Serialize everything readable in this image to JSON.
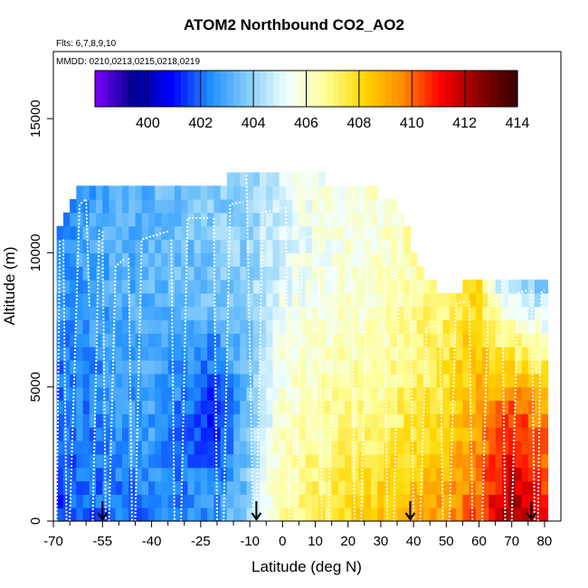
{
  "chart_data": {
    "type": "heatmap",
    "title": "ATOM2 Northbound CO2_AO2",
    "flights_note": "Flts: 6,7,8,9,10",
    "dates_note": "MMDD: 0210,0213,0215,0218,0219",
    "xlabel": "Latitude (deg N)",
    "ylabel": "Altitude (m)",
    "xlim": [
      -70,
      85
    ],
    "ylim": [
      0,
      17500
    ],
    "x_ticks": [
      -70,
      -55,
      -40,
      -25,
      -10,
      0,
      10,
      20,
      30,
      40,
      50,
      60,
      70,
      80
    ],
    "x_tick_labels": [
      "-70",
      "-55",
      "-40",
      "-25",
      "-10",
      "0",
      "10",
      "20",
      "30",
      "40",
      "50",
      "60",
      "70",
      "80"
    ],
    "x_minor_ticks": [
      -65,
      -60,
      -50,
      -45,
      -35,
      -30,
      -20,
      -15,
      -5,
      5,
      15,
      25,
      35,
      45,
      55,
      65,
      75
    ],
    "y_ticks": [
      0,
      5000,
      10000,
      15000
    ],
    "y_tick_labels": [
      "0",
      "5000",
      "10000",
      "15000"
    ],
    "colorbar": {
      "range": [
        398,
        414
      ],
      "ticks": [
        400,
        402,
        404,
        406,
        408,
        410,
        412,
        414
      ],
      "tick_labels": [
        "400",
        "402",
        "404",
        "406",
        "408",
        "410",
        "412",
        "414"
      ],
      "colors": [
        "#7f00ff",
        "#00008b",
        "#0000ff",
        "#1e90ff",
        "#87cefa",
        "#f0ffff",
        "#ffff99",
        "#ffd700",
        "#ff8c00",
        "#ff0000",
        "#8b0000",
        "#330000"
      ]
    },
    "cell_size": {
      "lat": 2.0,
      "alt": 500
    },
    "grid_field": {
      "description": "Gridded CO2 mole fraction (ppm) by latitude / altitude, key points",
      "lat_keypoints": [
        -68,
        -60,
        -50,
        -40,
        -30,
        -20,
        -10,
        -5,
        0,
        10,
        20,
        30,
        40,
        50,
        60,
        65,
        70,
        80
      ],
      "low_level_ppm": [
        401.5,
        401.8,
        402.0,
        402.2,
        402.5,
        402.8,
        404.0,
        405.5,
        406.5,
        407.5,
        408.0,
        408.5,
        409.0,
        409.5,
        410.5,
        411.5,
        412.5,
        411.0
      ],
      "mid_level_ppm": [
        402.0,
        402.3,
        402.5,
        402.8,
        402.0,
        401.0,
        403.5,
        405.0,
        406.0,
        406.5,
        406.8,
        407.0,
        407.5,
        408.0,
        409.0,
        410.0,
        410.5,
        409.5
      ],
      "upper_level_ppm": [
        402.5,
        402.8,
        403.0,
        403.2,
        403.5,
        403.8,
        404.0,
        404.5,
        405.0,
        405.5,
        405.8,
        406.0,
        406.5,
        407.0,
        408.0,
        405.0,
        404.0,
        403.5
      ]
    },
    "data_extent": {
      "lat_range": [
        -69,
        80
      ],
      "top_alt_by_lat": [
        [
          -69,
          10500
        ],
        [
          -62,
          12400
        ],
        [
          -20,
          12400
        ],
        [
          -10,
          12900
        ],
        [
          20,
          12400
        ],
        [
          35,
          11800
        ],
        [
          42,
          9200
        ],
        [
          50,
          8200
        ],
        [
          62,
          9000
        ],
        [
          80,
          9000
        ]
      ]
    },
    "flight_tracks": [
      [
        [
          -69,
          0
        ],
        [
          -68,
          10500
        ]
      ],
      [
        [
          -67,
          10500
        ],
        [
          -66,
          0
        ]
      ],
      [
        [
          -65,
          0
        ],
        [
          -62,
          11800
        ],
        [
          -60,
          12000
        ],
        [
          -59,
          8000
        ]
      ],
      [
        [
          -58,
          0
        ],
        [
          -56,
          10900
        ]
      ],
      [
        [
          -55,
          10800
        ],
        [
          -54,
          0
        ]
      ],
      [
        [
          -53,
          0
        ],
        [
          -51,
          9500
        ],
        [
          -48,
          9800
        ]
      ],
      [
        [
          -47,
          9800
        ],
        [
          -46,
          0
        ]
      ],
      [
        [
          -45,
          0
        ],
        [
          -43,
          10500
        ],
        [
          -35,
          10800
        ]
      ],
      [
        [
          -34,
          10500
        ],
        [
          -33,
          0
        ]
      ],
      [
        [
          -31,
          0
        ],
        [
          -29,
          11300
        ],
        [
          -22,
          11300
        ]
      ],
      [
        [
          -21,
          11300
        ],
        [
          -20,
          0
        ]
      ],
      [
        [
          -18,
          0
        ],
        [
          -16,
          11800
        ],
        [
          -12,
          11900
        ]
      ],
      [
        [
          -11,
          12900
        ],
        [
          -9,
          0
        ]
      ],
      [
        [
          -8,
          0
        ],
        [
          -6,
          11500
        ],
        [
          0,
          11700
        ]
      ],
      [
        [
          1,
          11700
        ],
        [
          2,
          0
        ]
      ],
      [
        [
          4,
          0
        ],
        [
          6,
          10500
        ],
        [
          10,
          10700
        ]
      ],
      [
        [
          11,
          10700
        ],
        [
          12,
          0
        ]
      ],
      [
        [
          14,
          0
        ],
        [
          16,
          11000
        ],
        [
          20,
          11200
        ]
      ],
      [
        [
          21,
          11200
        ],
        [
          22,
          0
        ]
      ],
      [
        [
          24,
          0
        ],
        [
          26,
          9800
        ],
        [
          30,
          10000
        ]
      ],
      [
        [
          31,
          10000
        ],
        [
          32,
          0
        ]
      ],
      [
        [
          34,
          0
        ],
        [
          36,
          11900
        ],
        [
          38,
          11800
        ]
      ],
      [
        [
          39,
          9200
        ],
        [
          40,
          0
        ]
      ],
      [
        [
          42,
          0
        ],
        [
          44,
          7200
        ],
        [
          47,
          7300
        ]
      ],
      [
        [
          48,
          7300
        ],
        [
          49,
          0
        ]
      ],
      [
        [
          51,
          0
        ],
        [
          53,
          8100
        ],
        [
          56,
          8200
        ]
      ],
      [
        [
          57,
          8200
        ],
        [
          58,
          0
        ]
      ],
      [
        [
          61,
          0
        ],
        [
          63,
          9000
        ],
        [
          66,
          9100
        ]
      ],
      [
        [
          67,
          9000
        ],
        [
          68,
          0
        ]
      ],
      [
        [
          70,
          0
        ],
        [
          72,
          8500
        ],
        [
          75,
          8600
        ]
      ],
      [
        [
          76,
          8600
        ],
        [
          77,
          0
        ]
      ],
      [
        [
          78,
          0
        ],
        [
          79,
          8500
        ],
        [
          80,
          8600
        ]
      ]
    ],
    "arrows_lat": [
      -55,
      -8,
      39,
      76
    ]
  }
}
